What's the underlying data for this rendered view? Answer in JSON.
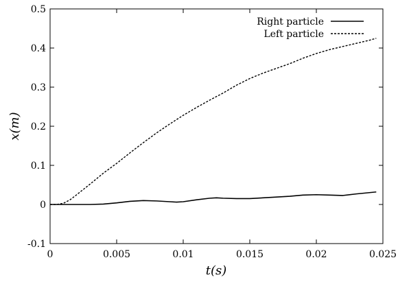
{
  "chart_data": {
    "type": "line",
    "title": "",
    "xlabel": "t(s)",
    "ylabel": "x(m)",
    "xlim": [
      0,
      0.025
    ],
    "ylim": [
      -0.1,
      0.5
    ],
    "xticks": [
      0,
      0.005,
      0.01,
      0.015,
      0.02,
      0.025
    ],
    "xtick_labels": [
      "0",
      "0.005",
      "0.01",
      "0.015",
      "0.02",
      "0.025"
    ],
    "yticks": [
      -0.1,
      0,
      0.1,
      0.2,
      0.3,
      0.4,
      0.5
    ],
    "ytick_labels": [
      "-0.1",
      "0",
      "0.1",
      "0.2",
      "0.3",
      "0.4",
      "0.5"
    ],
    "grid": false,
    "legend_position": "top-right",
    "series": [
      {
        "name": "Right particle",
        "style": "solid",
        "color": "#000000",
        "x": [
          0,
          0.001,
          0.002,
          0.003,
          0.004,
          0.005,
          0.006,
          0.007,
          0.008,
          0.009,
          0.0095,
          0.01,
          0.011,
          0.012,
          0.0125,
          0.013,
          0.014,
          0.015,
          0.016,
          0.017,
          0.018,
          0.019,
          0.02,
          0.021,
          0.022,
          0.023,
          0.0245
        ],
        "y": [
          0,
          0,
          0,
          0,
          0.001,
          0.004,
          0.008,
          0.01,
          0.009,
          0.007,
          0.006,
          0.007,
          0.012,
          0.016,
          0.017,
          0.016,
          0.015,
          0.015,
          0.017,
          0.019,
          0.021,
          0.024,
          0.025,
          0.024,
          0.023,
          0.027,
          0.032
        ]
      },
      {
        "name": "Left particle",
        "style": "dashed",
        "color": "#000000",
        "x": [
          0,
          0.0005,
          0.001,
          0.0015,
          0.002,
          0.003,
          0.004,
          0.005,
          0.006,
          0.007,
          0.008,
          0.009,
          0.01,
          0.011,
          0.012,
          0.013,
          0.014,
          0.015,
          0.016,
          0.017,
          0.018,
          0.019,
          0.02,
          0.021,
          0.022,
          0.023,
          0.024,
          0.0245
        ],
        "y": [
          0,
          0,
          0.003,
          0.012,
          0.025,
          0.052,
          0.08,
          0.105,
          0.132,
          0.158,
          0.183,
          0.206,
          0.228,
          0.248,
          0.267,
          0.285,
          0.305,
          0.322,
          0.336,
          0.348,
          0.36,
          0.374,
          0.386,
          0.396,
          0.404,
          0.412,
          0.42,
          0.425
        ]
      }
    ]
  }
}
